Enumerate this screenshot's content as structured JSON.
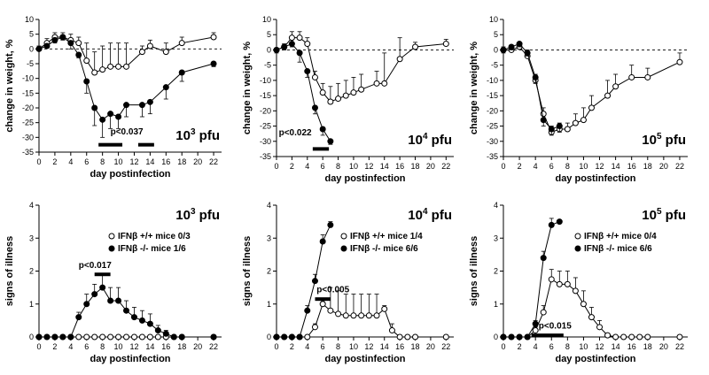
{
  "chart_data": [
    {
      "type": "line",
      "id": "w3",
      "ylabel": "change in weight, %",
      "xlabel": "day postinfection",
      "xlim": [
        0,
        23
      ],
      "ylim": [
        -35,
        10
      ],
      "xticks": [
        0,
        2,
        4,
        6,
        8,
        10,
        12,
        14,
        16,
        18,
        20,
        22
      ],
      "yticks": [
        10,
        5,
        0,
        -5,
        -10,
        -15,
        -20,
        -25,
        -30,
        -35
      ],
      "dose": {
        "base": "10",
        "exp": "3",
        "unit": " pfu"
      },
      "pvalue": "p<0.037",
      "bars": [
        [
          7.5,
          10.5
        ],
        [
          12.5,
          14.5
        ]
      ],
      "refline": 0,
      "series": [
        {
          "name": "IFNβ +/+",
          "marker": "open",
          "x": [
            0,
            1,
            2,
            3,
            4,
            5,
            6,
            7,
            8,
            9,
            10,
            11,
            13,
            14,
            16,
            18,
            22
          ],
          "y": [
            0,
            2,
            4,
            4,
            3,
            2,
            -4,
            -8,
            -7,
            -6,
            -6,
            -6,
            -1,
            1,
            -1,
            2,
            4
          ],
          "err": [
            1,
            1.5,
            1.5,
            1.5,
            2,
            2,
            6,
            7,
            8,
            8,
            8,
            8,
            2,
            2,
            3,
            2,
            1.5
          ]
        },
        {
          "name": "IFNβ -/-",
          "marker": "filled",
          "x": [
            0,
            1,
            2,
            3,
            4,
            5,
            6,
            7,
            8,
            9,
            10,
            11,
            13,
            14,
            16,
            18,
            22
          ],
          "y": [
            0,
            1,
            3,
            4,
            2,
            -2,
            -11,
            -20,
            -24,
            -22,
            -23,
            -19,
            -19,
            -18,
            -13,
            -8,
            -5
          ],
          "err": [
            0,
            0,
            1,
            1,
            2,
            1,
            4,
            6,
            6,
            5,
            4,
            4,
            4,
            4,
            4,
            3,
            1
          ]
        }
      ]
    },
    {
      "type": "line",
      "id": "w4",
      "ylabel": "change in weight, %",
      "xlabel": "day postinfection",
      "xlim": [
        0,
        23
      ],
      "ylim": [
        -35,
        10
      ],
      "xticks": [
        0,
        2,
        4,
        6,
        8,
        10,
        12,
        14,
        16,
        18,
        20,
        22
      ],
      "yticks": [
        10,
        5,
        0,
        -5,
        -10,
        -15,
        -20,
        -25,
        -30,
        -35
      ],
      "dose": {
        "base": "10",
        "exp": "4",
        "unit": " pfu"
      },
      "pvalue": "p<0.022",
      "bars": [
        [
          4.7,
          6.8
        ]
      ],
      "refline": 0,
      "series": [
        {
          "name": "IFNβ +/+",
          "marker": "open",
          "x": [
            0,
            1,
            2,
            3,
            4,
            5,
            6,
            7,
            8,
            9,
            10,
            11,
            13,
            14,
            16,
            18,
            22
          ],
          "y": [
            0,
            1,
            4,
            4,
            2,
            -9,
            -14,
            -17,
            -16,
            -15,
            -14,
            -13,
            -11,
            -11,
            -3,
            1,
            2
          ],
          "err": [
            0,
            1,
            2,
            2,
            2,
            2,
            3,
            5,
            5,
            5,
            5,
            5,
            4,
            10,
            7,
            1.5,
            1.5
          ]
        },
        {
          "name": "IFNβ -/-",
          "marker": "filled",
          "x": [
            0,
            1,
            2,
            3,
            4,
            5,
            6,
            7
          ],
          "y": [
            0,
            1,
            2,
            -1,
            -7,
            -19,
            -26,
            -30
          ],
          "err": [
            1,
            1,
            1,
            3,
            2,
            2,
            2,
            1
          ]
        }
      ]
    },
    {
      "type": "line",
      "id": "w5",
      "ylabel": "change in weight, %",
      "xlabel": "day postinfection",
      "xlim": [
        0,
        23
      ],
      "ylim": [
        -35,
        10
      ],
      "xticks": [
        0,
        2,
        4,
        6,
        8,
        10,
        12,
        14,
        16,
        18,
        20,
        22
      ],
      "yticks": [
        10,
        5,
        0,
        -5,
        -10,
        -15,
        -20,
        -25,
        -30,
        -35
      ],
      "dose": {
        "base": "10",
        "exp": "5",
        "unit": " pfu"
      },
      "pvalue": "",
      "bars": [],
      "refline": 0,
      "series": [
        {
          "name": "IFNβ +/+",
          "marker": "open",
          "x": [
            0,
            1,
            2,
            3,
            4,
            5,
            6,
            7,
            8,
            9,
            10,
            11,
            13,
            14,
            16,
            18,
            22
          ],
          "y": [
            0,
            0,
            1,
            -2,
            -10,
            -21,
            -27,
            -26,
            -26,
            -24,
            -23,
            -19,
            -15,
            -12,
            -9,
            -9,
            -4
          ],
          "err": [
            1,
            1,
            1,
            2,
            2,
            2,
            2,
            2,
            2,
            3,
            4,
            4,
            5,
            4,
            4,
            3,
            3
          ]
        },
        {
          "name": "IFNβ -/-",
          "marker": "filled",
          "x": [
            0,
            1,
            2,
            3,
            4,
            5,
            6,
            7
          ],
          "y": [
            0,
            1,
            2,
            -1,
            -9,
            -23,
            -26,
            -25
          ],
          "err": [
            1,
            1,
            1,
            1,
            2,
            2,
            2,
            2
          ]
        }
      ]
    },
    {
      "type": "line",
      "id": "s3",
      "ylabel": "signs of illness",
      "xlabel": "day postinfection",
      "xlim": [
        0,
        23
      ],
      "ylim": [
        0,
        4
      ],
      "xticks": [
        0,
        2,
        4,
        6,
        8,
        10,
        12,
        14,
        16,
        18,
        20,
        22
      ],
      "yticks": [
        0,
        1,
        2,
        3,
        4
      ],
      "dose": {
        "base": "10",
        "exp": "3",
        "unit": " pfu"
      },
      "pvalue": "p<0.017",
      "bars": [
        [
          7,
          9
        ]
      ],
      "legend": [
        {
          "marker": "open",
          "label": "IFNβ +/+ mice  0/3"
        },
        {
          "marker": "filled",
          "label": "IFNβ -/-  mice  1/6"
        }
      ],
      "series": [
        {
          "name": "IFNβ +/+",
          "marker": "open",
          "x": [
            0,
            1,
            2,
            3,
            4,
            5,
            6,
            7,
            8,
            9,
            10,
            11,
            12,
            13,
            14,
            15,
            16,
            17,
            18,
            22
          ],
          "y": [
            0,
            0,
            0,
            0,
            0,
            0,
            0,
            0,
            0,
            0,
            0,
            0,
            0,
            0,
            0,
            0,
            0,
            0,
            0,
            0
          ],
          "err": [
            0,
            0,
            0,
            0,
            0,
            0,
            0,
            0,
            0,
            0,
            0,
            0,
            0,
            0,
            0,
            0,
            0,
            0,
            0,
            0
          ]
        },
        {
          "name": "IFNβ -/-",
          "marker": "filled",
          "x": [
            0,
            1,
            2,
            3,
            4,
            5,
            6,
            7,
            8,
            9,
            10,
            11,
            12,
            13,
            14,
            15,
            16,
            17,
            18,
            22
          ],
          "y": [
            0,
            0,
            0,
            0,
            0,
            0.6,
            1,
            1.3,
            1.5,
            1.1,
            1.1,
            0.8,
            0.6,
            0.5,
            0.4,
            0.2,
            0.1,
            0,
            0,
            0
          ],
          "err": [
            0,
            0,
            0,
            0,
            0,
            0.15,
            0.3,
            0.3,
            0.4,
            0.4,
            0.4,
            0.3,
            0.3,
            0.3,
            0.3,
            0.15,
            0.1,
            0,
            0,
            0
          ]
        }
      ]
    },
    {
      "type": "line",
      "id": "s4",
      "ylabel": "signs of illness",
      "xlabel": "day postinfection",
      "xlim": [
        0,
        23
      ],
      "ylim": [
        0,
        4
      ],
      "xticks": [
        0,
        2,
        4,
        6,
        8,
        10,
        12,
        14,
        16,
        18,
        20,
        22
      ],
      "yticks": [
        0,
        1,
        2,
        3,
        4
      ],
      "dose": {
        "base": "10",
        "exp": "4",
        "unit": " pfu"
      },
      "pvalue": "p<0.005",
      "bars": [
        [
          5,
          7
        ]
      ],
      "legend": [
        {
          "marker": "open",
          "label": "IFNβ +/+ mice  1/4"
        },
        {
          "marker": "filled",
          "label": "IFNβ -/-  mice  6/6"
        }
      ],
      "series": [
        {
          "name": "IFNβ +/+",
          "marker": "open",
          "x": [
            0,
            1,
            2,
            3,
            4,
            5,
            6,
            7,
            8,
            9,
            10,
            11,
            12,
            13,
            14,
            15,
            16,
            17,
            18,
            22
          ],
          "y": [
            0,
            0,
            0,
            0,
            0,
            0.3,
            1,
            0.8,
            0.7,
            0.65,
            0.65,
            0.65,
            0.65,
            0.65,
            0.85,
            0.2,
            0,
            0,
            0,
            0
          ],
          "err": [
            0,
            0,
            0,
            0,
            0,
            0.1,
            0.1,
            0.7,
            0.7,
            0.65,
            0.65,
            0.65,
            0.65,
            0.65,
            0.1,
            0.2,
            0,
            0,
            0,
            0
          ]
        },
        {
          "name": "IFNβ -/-",
          "marker": "filled",
          "x": [
            0,
            1,
            2,
            3,
            4,
            5,
            6,
            7
          ],
          "y": [
            0,
            0,
            0,
            0,
            0.8,
            1.7,
            2.9,
            3.4
          ],
          "err": [
            0,
            0,
            0,
            0,
            0.15,
            0.2,
            0.2,
            0.1
          ]
        }
      ]
    },
    {
      "type": "line",
      "id": "s5",
      "ylabel": "signs of illness",
      "xlabel": "day postinfection",
      "xlim": [
        0,
        23
      ],
      "ylim": [
        0,
        4
      ],
      "xticks": [
        0,
        2,
        4,
        6,
        8,
        10,
        12,
        14,
        16,
        18,
        20,
        22
      ],
      "yticks": [
        0,
        1,
        2,
        3,
        4
      ],
      "dose": {
        "base": "10",
        "exp": "5",
        "unit": " pfu"
      },
      "pvalue": "p<0.015",
      "bars": [
        [
          3.5,
          7.5
        ]
      ],
      "legend": [
        {
          "marker": "open",
          "label": "IFNβ +/+ mice  0/4"
        },
        {
          "marker": "filled",
          "label": "IFNβ -/-  mice  6/6"
        }
      ],
      "series": [
        {
          "name": "IFNβ +/+",
          "marker": "open",
          "x": [
            0,
            1,
            2,
            3,
            4,
            5,
            6,
            7,
            8,
            9,
            10,
            11,
            12,
            13,
            14,
            15,
            16,
            17,
            18,
            22
          ],
          "y": [
            0,
            0,
            0,
            0,
            0.2,
            0.75,
            1.75,
            1.6,
            1.6,
            1.4,
            1,
            0.6,
            0.3,
            0.05,
            0,
            0,
            0,
            0,
            0,
            0
          ],
          "err": [
            0,
            0,
            0,
            0,
            0.1,
            0.2,
            0.3,
            0.4,
            0.4,
            0.4,
            0.4,
            0.3,
            0.2,
            0.05,
            0,
            0,
            0,
            0,
            0,
            0
          ]
        },
        {
          "name": "IFNβ -/-",
          "marker": "filled",
          "x": [
            0,
            1,
            2,
            3,
            4,
            5,
            6,
            7
          ],
          "y": [
            0,
            0,
            0,
            0,
            0.4,
            2.4,
            3.4,
            3.5
          ],
          "err": [
            0,
            0,
            0,
            0,
            0.1,
            0.2,
            0.2,
            0.05
          ]
        }
      ]
    }
  ]
}
